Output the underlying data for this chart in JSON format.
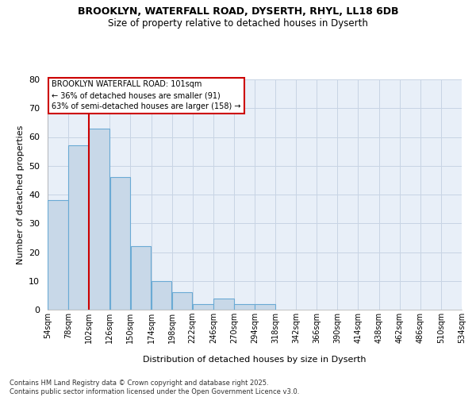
{
  "title1": "BROOKLYN, WATERFALL ROAD, DYSERTH, RHYL, LL18 6DB",
  "title2": "Size of property relative to detached houses in Dyserth",
  "xlabel": "Distribution of detached houses by size in Dyserth",
  "ylabel": "Number of detached properties",
  "bar_color": "#c8d8e8",
  "bar_edge_color": "#6aaad4",
  "grid_color": "#c8d4e4",
  "background_color": "#e8eff8",
  "annotation_text": "BROOKLYN WATERFALL ROAD: 101sqm\n← 36% of detached houses are smaller (91)\n63% of semi-detached houses are larger (158) →",
  "annotation_box_color": "#ffffff",
  "annotation_border_color": "#cc0000",
  "vline_x": 102,
  "vline_color": "#cc0000",
  "bin_edges": [
    54,
    78,
    102,
    126,
    150,
    174,
    198,
    222,
    246,
    270,
    294,
    318,
    342,
    366,
    390,
    414,
    438,
    462,
    486,
    510,
    534
  ],
  "bar_heights": [
    38,
    57,
    63,
    46,
    22,
    10,
    6,
    2,
    4,
    2,
    2,
    0,
    0,
    0,
    0,
    0,
    0,
    0,
    0,
    0,
    1
  ],
  "xlim": [
    54,
    534
  ],
  "ylim": [
    0,
    80
  ],
  "yticks": [
    0,
    10,
    20,
    30,
    40,
    50,
    60,
    70,
    80
  ],
  "footer_text": "Contains HM Land Registry data © Crown copyright and database right 2025.\nContains public sector information licensed under the Open Government Licence v3.0.",
  "tick_labels": [
    "54sqm",
    "78sqm",
    "102sqm",
    "126sqm",
    "150sqm",
    "174sqm",
    "198sqm",
    "222sqm",
    "246sqm",
    "270sqm",
    "294sqm",
    "318sqm",
    "342sqm",
    "366sqm",
    "390sqm",
    "414sqm",
    "438sqm",
    "462sqm",
    "486sqm",
    "510sqm",
    "534sqm"
  ]
}
